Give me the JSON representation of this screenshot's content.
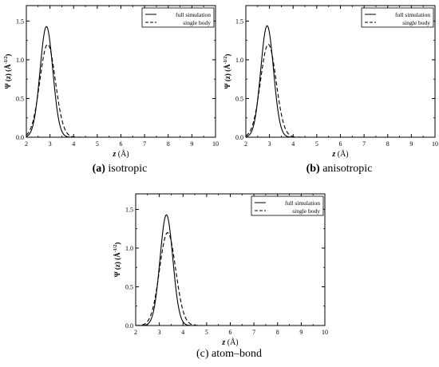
{
  "figures": [
    {
      "id": "a",
      "caption_label": "(a)",
      "caption_text": "isotropic",
      "chart_data": {
        "type": "line",
        "xlabel": "z (Å)",
        "ylabel": "Ψ (z) (Å^-1/2)",
        "xlim": [
          2,
          10
        ],
        "ylim": [
          0,
          1.7
        ],
        "xticks": [
          "2",
          "3",
          "4",
          "5",
          "6",
          "7",
          "8",
          "9",
          "10"
        ],
        "yticks": [
          "0.0",
          "0.5",
          "1.0",
          "1.5"
        ],
        "legend_position": "top-right",
        "series": [
          {
            "name": "full simulation",
            "style": "solid",
            "center": 2.85,
            "peak": 1.43,
            "sigma": 0.27
          },
          {
            "name": "single body",
            "style": "dashed",
            "center": 2.9,
            "peak": 1.2,
            "sigma": 0.33
          }
        ]
      }
    },
    {
      "id": "b",
      "caption_label": "(b)",
      "caption_text": "anisotropic",
      "chart_data": {
        "type": "line",
        "xlabel": "z (Å)",
        "ylabel": "Ψ (z) (Å^-1/2)",
        "xlim": [
          2,
          10
        ],
        "ylim": [
          0,
          1.7
        ],
        "xticks": [
          "2",
          "3",
          "4",
          "5",
          "6",
          "7",
          "8",
          "9",
          "10"
        ],
        "yticks": [
          "0.0",
          "0.5",
          "1.0",
          "1.5"
        ],
        "legend_position": "top-right",
        "series": [
          {
            "name": "full simulation",
            "style": "solid",
            "center": 2.9,
            "peak": 1.44,
            "sigma": 0.27
          },
          {
            "name": "single body",
            "style": "dashed",
            "center": 2.95,
            "peak": 1.2,
            "sigma": 0.33
          }
        ]
      }
    },
    {
      "id": "c",
      "caption_label": "(c)",
      "caption_text": "atom–bond",
      "chart_data": {
        "type": "line",
        "xlabel": "z (Å)",
        "ylabel": "Ψ (z) (Å^-1/2)",
        "xlim": [
          2,
          10
        ],
        "ylim": [
          0,
          1.7
        ],
        "xticks": [
          "2",
          "3",
          "4",
          "5",
          "6",
          "7",
          "8",
          "9",
          "10"
        ],
        "yticks": [
          "0.0",
          "0.5",
          "1.0",
          "1.5"
        ],
        "legend_position": "top-right",
        "series": [
          {
            "name": "full simulation",
            "style": "solid",
            "center": 3.3,
            "peak": 1.43,
            "sigma": 0.27
          },
          {
            "name": "single body",
            "style": "dashed",
            "center": 3.35,
            "peak": 1.2,
            "sigma": 0.34
          }
        ]
      }
    }
  ]
}
